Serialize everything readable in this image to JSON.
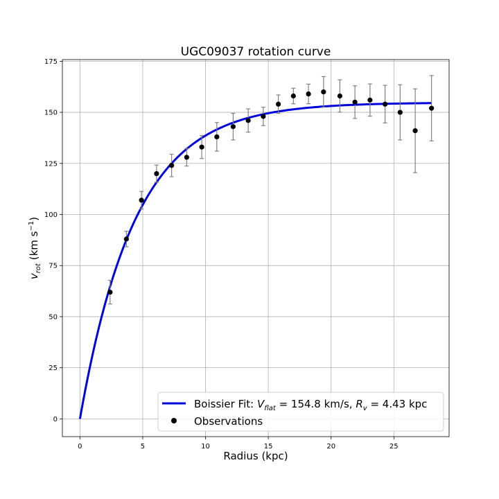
{
  "chart_data": {
    "type": "scatter",
    "title": "UGC09037 rotation curve",
    "xlabel": "Radius (kpc)",
    "ylabel": "v_rot (km s^-1)",
    "xlim": [
      -1.4,
      29.4
    ],
    "ylim": [
      -8.7,
      175.8
    ],
    "x_ticks": [
      0,
      5,
      10,
      15,
      20,
      25
    ],
    "y_ticks": [
      0,
      25,
      50,
      75,
      100,
      125,
      150,
      175
    ],
    "grid": true,
    "legend_position": "lower-right",
    "series": [
      {
        "name": "Boissier Fit: V_flat = 154.8 km/s, R_v = 4.43 kpc",
        "kind": "line",
        "color": "#0000dd",
        "model": "boissier",
        "V_flat": 154.8,
        "R_v": 4.43,
        "x_range": [
          0,
          28
        ]
      },
      {
        "name": "Observations",
        "kind": "errorbar",
        "color": "#000000",
        "error_color": "#808080",
        "x": [
          2.4,
          3.7,
          4.9,
          6.1,
          7.3,
          8.5,
          9.7,
          10.9,
          12.2,
          13.4,
          14.6,
          15.8,
          17.0,
          18.2,
          19.4,
          20.7,
          21.9,
          23.1,
          24.3,
          25.5,
          26.7,
          28.0
        ],
        "y": [
          62,
          88,
          107,
          120,
          124,
          128,
          133,
          138,
          143,
          146,
          148,
          154,
          158,
          159,
          160,
          158,
          155,
          156,
          154,
          150,
          141,
          152
        ],
        "yerr": [
          5.8,
          3.8,
          4.3,
          4.2,
          5.5,
          4.3,
          5.6,
          7.0,
          6.5,
          5.7,
          4.5,
          4.5,
          3.8,
          4.8,
          7.5,
          7.9,
          8.0,
          7.9,
          9.2,
          13.5,
          20.5,
          16.0
        ]
      }
    ]
  }
}
